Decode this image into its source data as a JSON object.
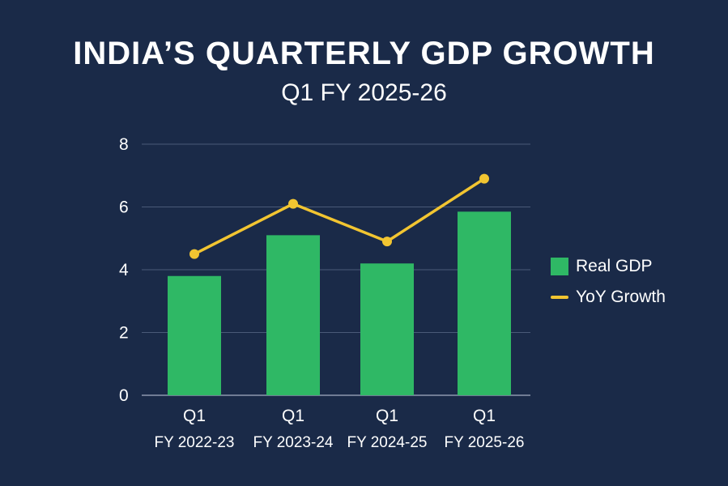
{
  "colors": {
    "background": "#1a2a48",
    "bar": "#2fb865",
    "line": "#f2c531",
    "grid": "#4a5a78",
    "text": "#ffffff"
  },
  "chart_data": {
    "type": "bar",
    "title": "INDIA’S QUARTERLY GDP GROWTH",
    "subtitle": "Q1 FY 2025-26",
    "categories": [
      {
        "top": "Q1",
        "bottom": "FY 2022-23"
      },
      {
        "top": "Q1",
        "bottom": "FY 2023-24"
      },
      {
        "top": "Q1",
        "bottom": "FY 2024-25"
      },
      {
        "top": "Q1",
        "bottom": "FY 2025-26"
      }
    ],
    "ylim": [
      0,
      8
    ],
    "yticks": [
      "0",
      "2",
      "4",
      "6",
      "8"
    ],
    "grid": true,
    "legend_position": "right",
    "series": [
      {
        "name": "Real GDP",
        "kind": "bar",
        "values": [
          3.8,
          5.1,
          4.2,
          5.85
        ]
      },
      {
        "name": "YoY Growth",
        "kind": "line",
        "values": [
          4.5,
          6.1,
          4.9,
          6.9
        ]
      }
    ]
  }
}
